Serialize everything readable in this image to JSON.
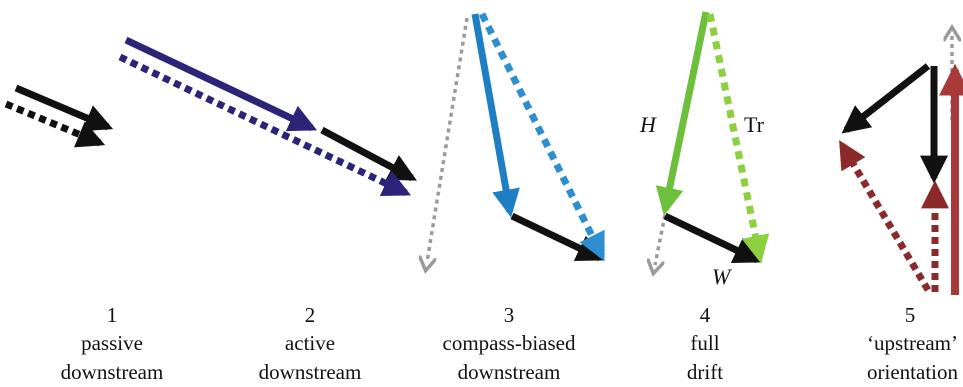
{
  "colors": {
    "black": "#111111",
    "navy": "#2b2478",
    "blue": "#1f7fc4",
    "light_blue": "#2e8fd0",
    "green": "#6cc03c",
    "light_green": "#8ccf3f",
    "gray": "#9a9a9a",
    "dark_red": "#8b2a2a",
    "red": "#a83a3a"
  },
  "vector_labels": {
    "heading": "H",
    "track": "Tr",
    "wind": "W"
  },
  "panels": [
    {
      "number": "1",
      "line1": "passive",
      "line2": "downstream"
    },
    {
      "number": "2",
      "line1": "active",
      "line2": "downstream"
    },
    {
      "number": "3",
      "line1": "compass-biased",
      "line2": "downstream"
    },
    {
      "number": "4",
      "line1": "full",
      "line2": "drift"
    },
    {
      "number": "5",
      "line1": "‘upstream’",
      "line2": "orientation"
    }
  ]
}
